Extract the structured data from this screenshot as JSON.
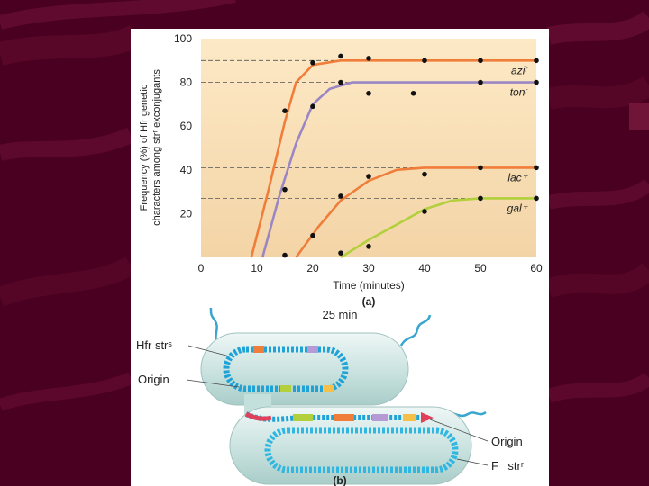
{
  "colors": {
    "background": "#4a0020",
    "plot_bg_top": "#fde9c6",
    "plot_bg_bottom": "#f3d4a6",
    "orange_curve": "#f07d3a",
    "purple_curve": "#9a86c4",
    "green_curve": "#b2cf3c",
    "cell": "#d2e8e6",
    "dna_outer": "#1fa3d6"
  },
  "chart_data": {
    "type": "line",
    "caption": "(a)",
    "xlabel": "Time (minutes)",
    "ylabel_line1": "Frequency (%) of Hfr genetic",
    "ylabel_line2": "characters among strʳ exconjugants",
    "xlim": [
      0,
      60
    ],
    "ylim": [
      0,
      100
    ],
    "xticks": [
      "0",
      "10",
      "20",
      "30",
      "40",
      "50",
      "60"
    ],
    "yticks": [
      "20",
      "40",
      "60",
      "80",
      "100"
    ],
    "series": [
      {
        "name": "aziʳ",
        "color": "#f07d3a",
        "plateau": 90,
        "curve": [
          [
            9,
            0
          ],
          [
            12,
            30
          ],
          [
            15,
            62
          ],
          [
            17,
            80
          ],
          [
            20,
            88
          ],
          [
            25,
            90
          ],
          [
            60,
            90
          ]
        ],
        "points": [
          [
            15,
            67
          ],
          [
            20,
            89
          ],
          [
            25,
            92
          ],
          [
            30,
            91
          ],
          [
            40,
            90
          ],
          [
            50,
            90
          ],
          [
            60,
            90
          ]
        ]
      },
      {
        "name": "tonʳ",
        "color": "#9a86c4",
        "plateau": 80,
        "curve": [
          [
            11,
            0
          ],
          [
            14,
            28
          ],
          [
            17,
            52
          ],
          [
            20,
            70
          ],
          [
            23,
            77
          ],
          [
            27,
            80
          ],
          [
            60,
            80
          ]
        ],
        "points": [
          [
            15,
            31
          ],
          [
            20,
            69
          ],
          [
            25,
            80
          ],
          [
            30,
            75
          ],
          [
            38,
            75
          ],
          [
            50,
            80
          ],
          [
            60,
            80
          ]
        ]
      },
      {
        "name": "lac⁺",
        "color": "#f07d3a",
        "plateau": 41,
        "curve": [
          [
            17,
            0
          ],
          [
            21,
            14
          ],
          [
            25,
            26
          ],
          [
            30,
            35
          ],
          [
            35,
            40
          ],
          [
            40,
            41
          ],
          [
            60,
            41
          ]
        ],
        "points": [
          [
            15,
            1
          ],
          [
            20,
            10
          ],
          [
            25,
            28
          ],
          [
            30,
            37
          ],
          [
            40,
            38
          ],
          [
            50,
            41
          ],
          [
            60,
            41
          ]
        ]
      },
      {
        "name": "gal⁺",
        "color": "#b2cf3c",
        "plateau": 27,
        "curve": [
          [
            25,
            0
          ],
          [
            30,
            8
          ],
          [
            35,
            15
          ],
          [
            40,
            22
          ],
          [
            45,
            26
          ],
          [
            50,
            27
          ],
          [
            60,
            27
          ]
        ],
        "points": [
          [
            25,
            2
          ],
          [
            30,
            5
          ],
          [
            40,
            21
          ],
          [
            50,
            27
          ],
          [
            60,
            27
          ]
        ]
      }
    ]
  },
  "diagram": {
    "caption": "(b)",
    "time_label": "25 min",
    "hfr_label": "Hfr strˢ",
    "origin_label_left": "Origin",
    "origin_label_right": "Origin",
    "recipient_label": "F⁻ strʳ"
  }
}
